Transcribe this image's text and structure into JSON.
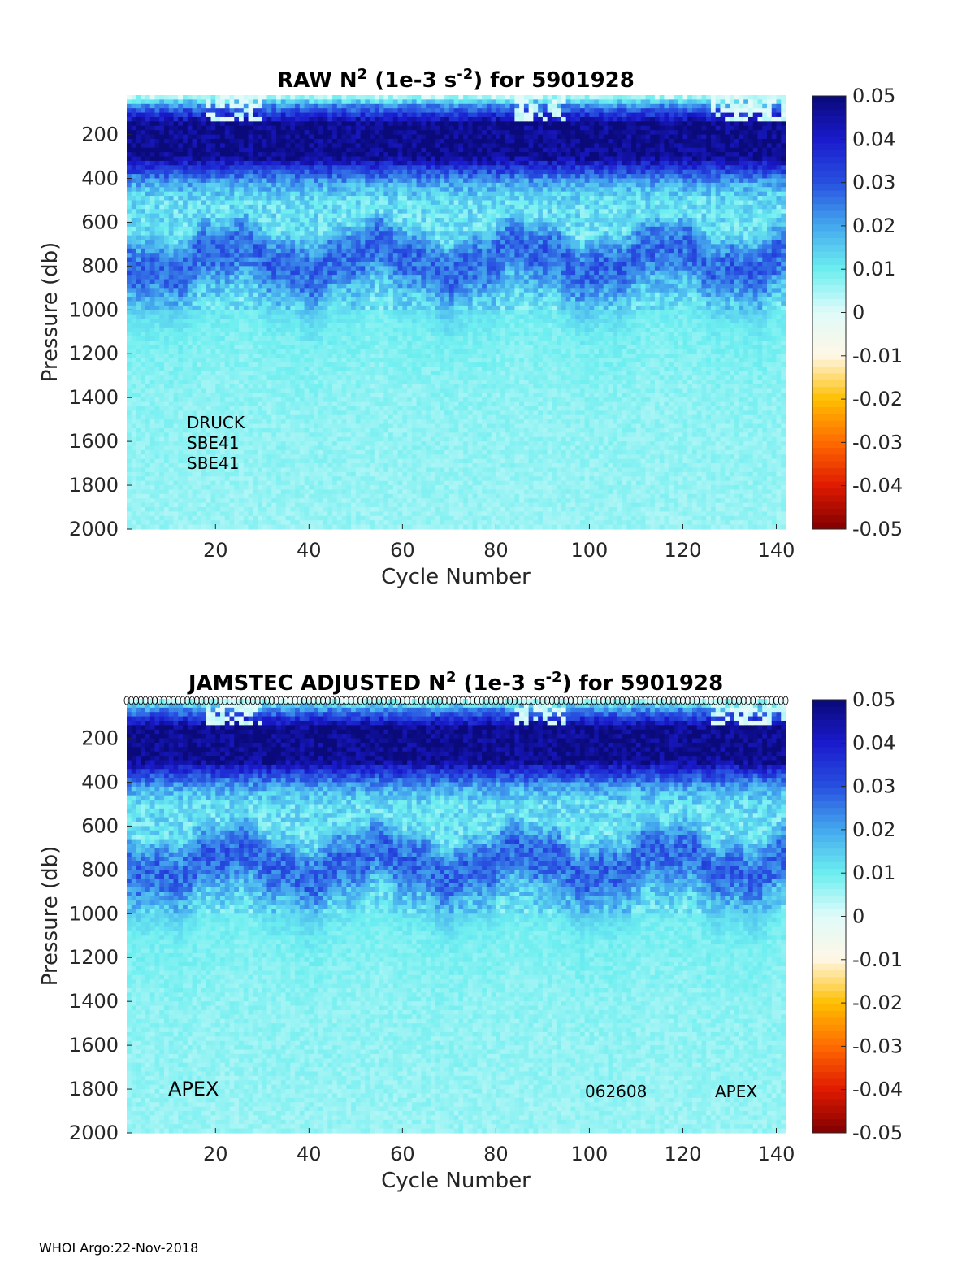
{
  "colors": {
    "text": "#262626",
    "title": "#000000",
    "colormap": [
      "#800000",
      "#e01a00",
      "#ff6a00",
      "#ffbf00",
      "#fff7e6",
      "#e0fbfa",
      "#6ceef0",
      "#44a8ee",
      "#2850e0",
      "#1a1acc",
      "#0a0a7a"
    ]
  },
  "chart_data": [
    {
      "type": "heatmap",
      "id": "raw",
      "title_parts": {
        "pre": "RAW N",
        "sup1": "2",
        "mid": " (1e-3 s",
        "sup2": "-2",
        "post": ") for 5901928"
      },
      "xlabel": "Cycle Number",
      "ylabel": "Pressure (db)",
      "xlim": [
        1,
        142
      ],
      "ylim": [
        2000,
        20
      ],
      "xticks": [
        20,
        40,
        60,
        80,
        100,
        120,
        140
      ],
      "yticks": [
        200,
        400,
        600,
        800,
        1000,
        1200,
        1400,
        1600,
        1800,
        2000
      ],
      "clim": [
        -0.05,
        0.05
      ],
      "colorbar_ticks": [
        0.05,
        0.04,
        0.03,
        0.02,
        0.01,
        0,
        -0.01,
        -0.02,
        -0.03,
        -0.04,
        -0.05
      ],
      "colorbar_tick_labels": [
        "0.05",
        "0.04",
        "0.03",
        "0.02",
        "0.01",
        "0",
        "-0.01",
        "-0.02",
        "-0.03",
        "-0.04",
        "-0.05"
      ],
      "annotations": [
        "DRUCK",
        "SBE41",
        "SBE41"
      ],
      "profile_markers": false,
      "structure": {
        "layer_pressures": [
          20,
          60,
          150,
          300,
          350,
          420,
          500,
          600,
          680,
          750,
          830,
          900,
          1000,
          1100,
          1400,
          2000
        ],
        "layer_values": [
          -0.002,
          0.02,
          0.048,
          0.048,
          0.035,
          0.02,
          0.012,
          0.011,
          0.022,
          0.028,
          0.026,
          0.018,
          0.012,
          0.009,
          0.007,
          0.006
        ],
        "wave_amplitude_db": 60,
        "wave_period_cycles": 31
      }
    },
    {
      "type": "heatmap",
      "id": "adjusted",
      "title_parts": {
        "pre": "JAMSTEC  ADJUSTED N",
        "sup1": "2",
        "mid": " (1e-3 s",
        "sup2": "-2",
        "post": ") for 5901928"
      },
      "xlabel": "Cycle Number",
      "ylabel": "Pressure (db)",
      "xlim": [
        1,
        142
      ],
      "ylim": [
        2000,
        20
      ],
      "xticks": [
        20,
        40,
        60,
        80,
        100,
        120,
        140
      ],
      "yticks": [
        200,
        400,
        600,
        800,
        1000,
        1200,
        1400,
        1600,
        1800,
        2000
      ],
      "clim": [
        -0.05,
        0.05
      ],
      "colorbar_ticks": [
        0.05,
        0.04,
        0.03,
        0.02,
        0.01,
        0,
        -0.01,
        -0.02,
        -0.03,
        -0.04,
        -0.05
      ],
      "colorbar_tick_labels": [
        "0.05",
        "0.04",
        "0.03",
        "0.02",
        "0.01",
        "0",
        "-0.01",
        "-0.02",
        "-0.03",
        "-0.04",
        "-0.05"
      ],
      "annotations": [
        "APEX",
        "062608",
        "APEX"
      ],
      "profile_markers": true,
      "structure": {
        "layer_pressures": [
          20,
          60,
          150,
          300,
          350,
          420,
          500,
          600,
          680,
          750,
          830,
          900,
          1000,
          1100,
          1400,
          2000
        ],
        "layer_values": [
          -0.002,
          0.02,
          0.048,
          0.048,
          0.035,
          0.02,
          0.012,
          0.011,
          0.022,
          0.028,
          0.026,
          0.018,
          0.012,
          0.009,
          0.007,
          0.006
        ],
        "wave_amplitude_db": 60,
        "wave_period_cycles": 31
      }
    }
  ],
  "footer": "WHOI Argo:22-Nov-2018"
}
